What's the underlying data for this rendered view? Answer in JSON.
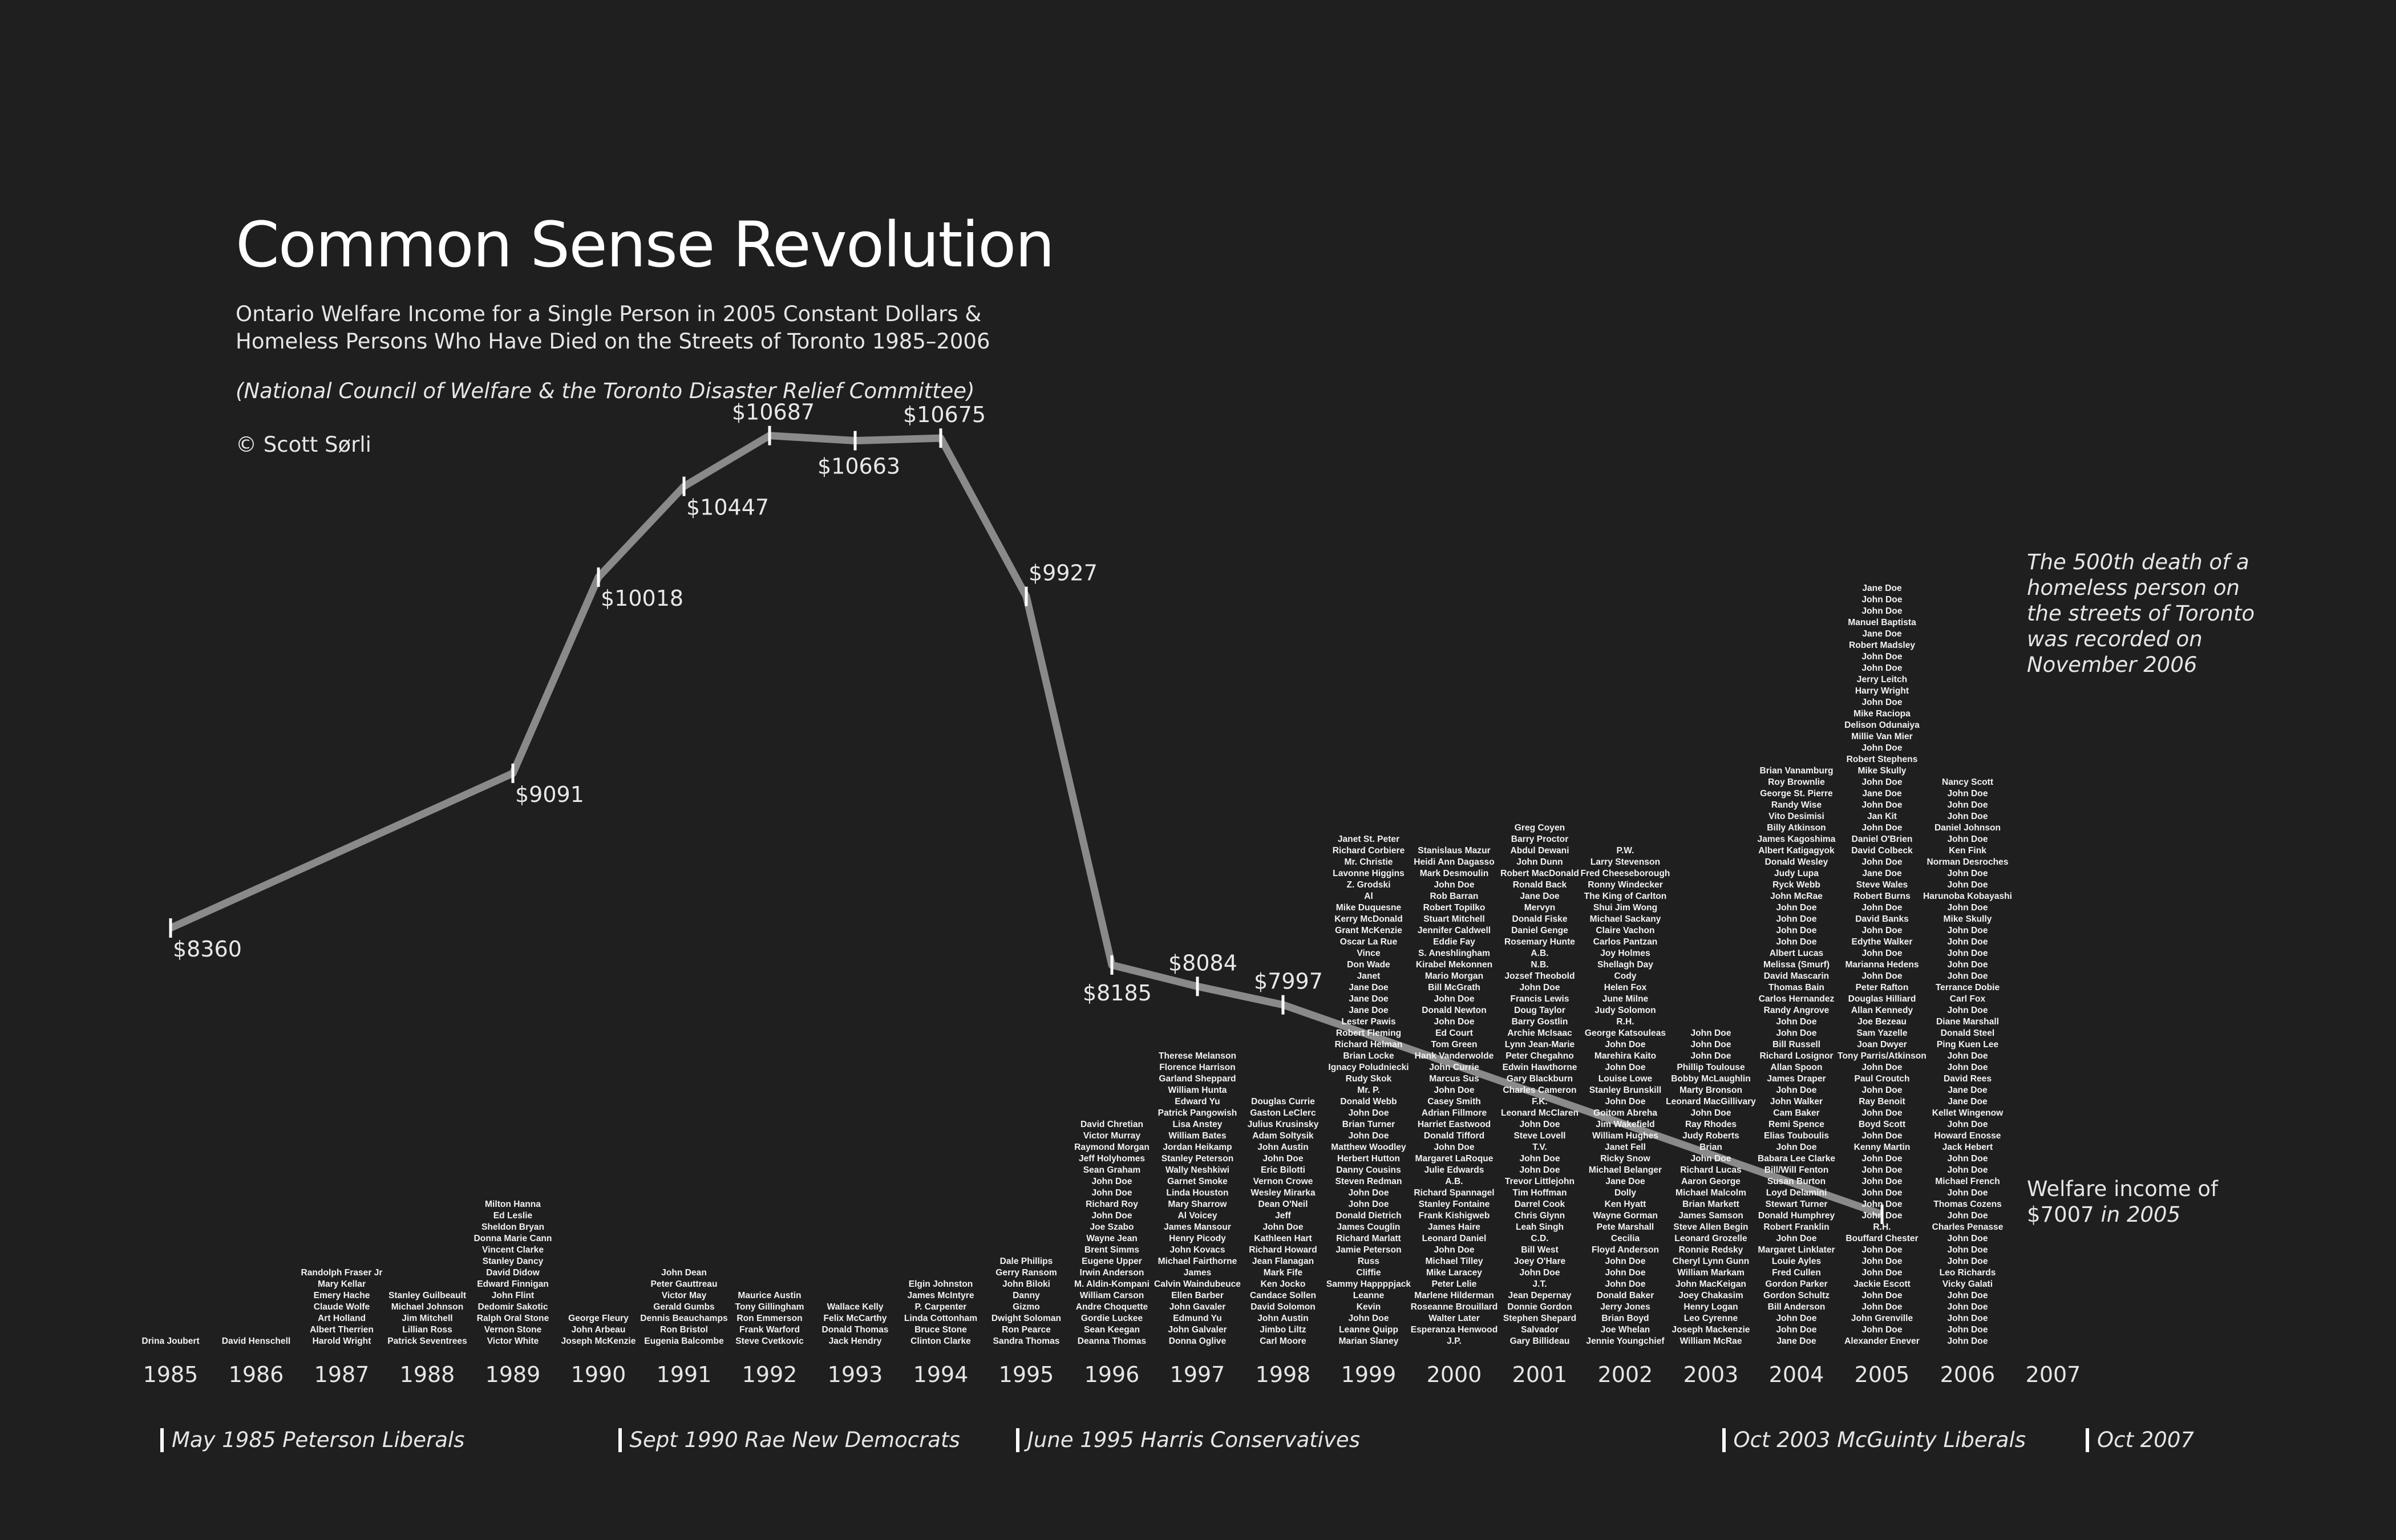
{
  "header": {
    "title": "Common Sense Revolution",
    "subtitle_line1": "Ontario Welfare Income for a Single Person in 2005 Constant Dollars &",
    "subtitle_line2": "Homeless Persons Who Have Died on the Streets of Toronto 1985–2006",
    "source": "(National Council of Welfare & the Toronto Disaster Relief Committee)",
    "copyright": "© Scott Sørli"
  },
  "annotations": {
    "death_500_line1": "The 500th death of a",
    "death_500_line2": "homeless person on",
    "death_500_line3": "the streets of Toronto",
    "death_500_line4": "was recorded on",
    "death_500_line5": "November 2006",
    "welfare_line1": "Welfare income of",
    "welfare_value": "$7007",
    "welfare_suffix": "in 2005"
  },
  "eras": [
    {
      "label": "May 1985 Peterson Liberals",
      "year": 1985
    },
    {
      "label": "Sept 1990 Rae New Democrats",
      "year": 1990.35
    },
    {
      "label": "June 1995 Harris Conservatives",
      "year": 1995
    },
    {
      "label": "Oct 2003 McGuinty Liberals",
      "year": 2003.25
    },
    {
      "label": "Oct 2007",
      "year": 2007.5
    }
  ],
  "colors": {
    "background": "#201f20",
    "line": "#8a8a8a",
    "text": "#e8e8e8",
    "tick": "#ffffff"
  },
  "chart_data": {
    "type": "line",
    "title": "Common Sense Revolution",
    "x": [
      1985,
      1986,
      1989,
      1990,
      1991,
      1992,
      1993,
      1994,
      1995,
      1996,
      1997,
      1998,
      2005
    ],
    "series": [
      {
        "values": [
          8360,
          null,
          9091,
          10018,
          10447,
          10687,
          10663,
          10675,
          9927,
          8185,
          8084,
          7997,
          7007
        ]
      }
    ],
    "labels": [
      "$8360",
      "",
      "$9091",
      "$10018",
      "$10447",
      "$10687",
      "$10663",
      "$10675",
      "$9927",
      "$8185",
      "$8084",
      "$7997",
      ""
    ],
    "x_ticks": [
      "1985",
      "1986",
      "1987",
      "1988",
      "1989",
      "1990",
      "1991",
      "1992",
      "1993",
      "1994",
      "1995",
      "1996",
      "1997",
      "1998",
      "1999",
      "2000",
      "2001",
      "2002",
      "2003",
      "2004",
      "2005",
      "2006",
      "2007"
    ],
    "grid": false,
    "deaths_by_year": [
      {
        "year": "1985",
        "names": [
          "Drina Joubert"
        ]
      },
      {
        "year": "1986",
        "names": [
          "David Henschell"
        ]
      },
      {
        "year": "1987",
        "names": [
          "Randolph Fraser Jr",
          "Mary Kellar",
          "Emery Hache",
          "Claude Wolfe",
          "Art Holland",
          "Albert Therrien",
          "Harold Wright"
        ]
      },
      {
        "year": "1988",
        "names": [
          "Stanley Guilbeault",
          "Michael Johnson",
          "Jim Mitchell",
          "Lillian Ross",
          "Patrick Seventrees"
        ]
      },
      {
        "year": "1989",
        "names": [
          "Milton Hanna",
          "Ed Leslie",
          "Sheldon Bryan",
          "Donna Marie Cann",
          "Vincent Clarke",
          "Stanley Dancy",
          "David Didow",
          "Edward Finnigan",
          "John Flint",
          "Dedomir Sakotic",
          "Ralph Oral Stone",
          "Vernon Stone",
          "Victor White"
        ]
      },
      {
        "year": "1990",
        "names": [
          "George Fleury",
          "John Arbeau",
          "Joseph McKenzie"
        ]
      },
      {
        "year": "1991",
        "names": [
          "John Dean",
          "Peter Gauttreau",
          "Victor May",
          "Gerald Gumbs",
          "Dennis Beauchamps",
          "Ron Bristol",
          "Eugenia Balcombe"
        ]
      },
      {
        "year": "1992",
        "names": [
          "Maurice Austin",
          "Tony Gillingham",
          "Ron Emmerson",
          "Frank Warford",
          "Steve Cvetkovic"
        ]
      },
      {
        "year": "1993",
        "names": [
          "Wallace Kelly",
          "Felix McCarthy",
          "Donald Thomas",
          "Jack Hendry"
        ]
      },
      {
        "year": "1994",
        "names": [
          "Elgin Johnston",
          "James McIntyre",
          "P. Carpenter",
          "Linda Cottonham",
          "Bruce Stone",
          "Clinton Clarke"
        ]
      },
      {
        "year": "1995",
        "names": [
          "Dale Phillips",
          "Gerry Ransom",
          "John Biloki",
          "Danny",
          "Gizmo",
          "Dwight Soloman",
          "Ron Pearce",
          "Sandra Thomas"
        ]
      },
      {
        "year": "1996",
        "names": [
          "David Chretian",
          "Victor Murray",
          "Raymond Morgan",
          "Jeff Holyhomes",
          "Sean Graham",
          "John Doe",
          "John Doe",
          "Richard Roy",
          "John Doe",
          "Joe Szabo",
          "Wayne Jean",
          "Brent Simms",
          "Eugene Upper",
          "Irwin Anderson",
          "M. Aldin-Kompani",
          "William Carson",
          "Andre Choquette",
          "Gordie Luckee",
          "Sean Keegan",
          "Deanna Thomas"
        ]
      },
      {
        "year": "1997",
        "names": [
          "Therese Melanson",
          "Florence Harrison",
          "Garland Sheppard",
          "William Hunta",
          "Edward Yu",
          "Patrick Pangowish",
          "Lisa Anstey",
          "William Bates",
          "Jordan Heikamp",
          "Stanley Peterson",
          "Wally Neshkiwi",
          "Garnet Smoke",
          "Linda Houston",
          "Mary Sharrow",
          "Al Voicey",
          "James Mansour",
          "Henry Picody",
          "John Kovacs",
          "Michael Fairthorne",
          "James",
          "Calvin Waindubeuce",
          "Ellen Barber",
          "John Gavaler",
          "Edmund Yu",
          "John Galvaler",
          "Donna Oglive"
        ]
      },
      {
        "year": "1998",
        "names": [
          "Douglas Currie",
          "Gaston LeClerc",
          "Julius Krusinsky",
          "Adam Soltysik",
          "John Austin",
          "John Doe",
          "Eric Bilotti",
          "Vernon Crowe",
          "Wesley Mirarka",
          "Dean O'Neil",
          "Jeff",
          "John Doe",
          "Kathleen Hart",
          "Richard Howard",
          "Jean Flanagan",
          "Mark Fife",
          "Ken Jocko",
          "Candace Sollen",
          "David Solomon",
          "John Austin",
          "Jimbo Liltz",
          "Carl Moore"
        ]
      },
      {
        "year": "1999",
        "names": [
          "Janet St. Peter",
          "Richard Corbiere",
          "Mr. Christie",
          "Lavonne Higgins",
          "Z. Grodski",
          "Al",
          "Mike Duquesne",
          "Kerry McDonald",
          "Grant McKenzie",
          "Oscar La Rue",
          "Vince",
          "Don Wade",
          "Janet",
          "Jane Doe",
          "Jane Doe",
          "Jane Doe",
          "Lester Pawis",
          "Robert Fleming",
          "Richard Helman",
          "Brian Locke",
          "Ignacy Poludniecki",
          "Rudy Skok",
          "Mr. P.",
          "Donald Webb",
          "John Doe",
          "Brian Turner",
          "John Doe",
          "Matthew Woodley",
          "Herbert Hutton",
          "Danny Cousins",
          "Steven Redman",
          "John Doe",
          "John Doe",
          "Donald Dietrich",
          "James Couglin",
          "Richard Marlatt",
          "Jamie Peterson",
          "Russ",
          "Cliffie",
          "Sammy Happppjack",
          "Leanne",
          "Kevin",
          "John Doe",
          "Leanne Quipp",
          "Marian Slaney"
        ]
      },
      {
        "year": "2000",
        "names": [
          "Stanislaus Mazur",
          "Heidi Ann Dagasso",
          "Mark Desmoulin",
          "John Doe",
          "Rob Barran",
          "Robert Topilko",
          "Stuart Mitchell",
          "Jennifer Caldwell",
          "Eddie Fay",
          "S. Aneshlingham",
          "Kirabel Mekonnen",
          "Mario Morgan",
          "Bill McGrath",
          "John Doe",
          "Donald Newton",
          "John Doe",
          "Ed Court",
          "Tom Green",
          "Hank Vanderwolde",
          "John Currie",
          "Marcus Sus",
          "John Doe",
          "Casey Smith",
          "Adrian Fillmore",
          "Harriet Eastwood",
          "Donald Tifford",
          "John Doe",
          "Margaret LaRoque",
          "Julie Edwards",
          "A.B.",
          "Richard Spannagel",
          "Stanley Fontaine",
          "Frank Kishigweb",
          "James Haire",
          "Leonard Daniel",
          "John Doe",
          "Michael Tilley",
          "Mike Laracey",
          "Peter Lelie",
          "Marlene Hilderman",
          "Roseanne Brouillard",
          "Walter Later",
          "Esperanza Henwood",
          "J.P."
        ]
      },
      {
        "year": "2001",
        "names": [
          "Greg Coyen",
          "Barry Proctor",
          "Abdul Dewani",
          "John Dunn",
          "Robert MacDonald",
          "Ronald Back",
          "Jane Doe",
          "Mervyn",
          "Donald Fiske",
          "Daniel Genge",
          "Rosemary Hunte",
          "A.B.",
          "N.B.",
          "Jozsef Theobold",
          "John Doe",
          "Francis Lewis",
          "Doug Taylor",
          "Barry Gostlin",
          "Archie McIsaac",
          "Lynn Jean-Marie",
          "Peter Chegahno",
          "Edwin Hawthorne",
          "Gary Blackburn",
          "Charles Cameron",
          "F.K.",
          "Leonard McClaren",
          "John Doe",
          "Steve Lovell",
          "T.V.",
          "John Doe",
          "John Doe",
          "Trevor Littlejohn",
          "Tim Hoffman",
          "Darrel Cook",
          "Chris Glynn",
          "Leah Singh",
          "C.D.",
          "Bill West",
          "Joey O'Hare",
          "John Doe",
          "J.T.",
          "Jean Depernay",
          "Donnie Gordon",
          "Stephen Shepard",
          "Salvador",
          "Gary Billideau"
        ]
      },
      {
        "year": "2002",
        "names": [
          "P.W.",
          "Larry Stevenson",
          "Fred Cheeseborough",
          "Ronny Windecker",
          "The King of Carlton",
          "Shui Jim Wong",
          "Michael Sackany",
          "Claire Vachon",
          "Carlos Pantzan",
          "Joy Holmes",
          "Shellagh Day",
          "Cody",
          "Helen Fox",
          "June Milne",
          "Judy Solomon",
          "R.H.",
          "George Katsouleas",
          "John Doe",
          "Marehira Kaito",
          "John Doe",
          "Louise Lowe",
          "Stanley Brunskill",
          "John Doe",
          "Goitom Abreha",
          "Jim Wakefield",
          "William Hughes",
          "Janet Fell",
          "Ricky Snow",
          "Michael Belanger",
          "Jane Doe",
          "Dolly",
          "Ken Hyatt",
          "Wayne Gorman",
          "Pete Marshall",
          "Cecilia",
          "Floyd Anderson",
          "John Doe",
          "John Doe",
          "John Doe",
          "Donald Baker",
          "Jerry Jones",
          "Brian Boyd",
          "Joe Whelan",
          "Jennie Youngchief"
        ]
      },
      {
        "year": "2003",
        "names": [
          "John Doe",
          "John Doe",
          "John Doe",
          "Phillip Toulouse",
          "Bobby McLaughlin",
          "Marty Bronson",
          "Leonard MacGillivary",
          "John Doe",
          "Ray Rhodes",
          "Judy Roberts",
          "Brian",
          "John Doe",
          "Richard Lucas",
          "Aaron George",
          "Michael Malcolm",
          "Brian Markett",
          "James Samson",
          "Steve Allen Begin",
          "Leonard Grozelle",
          "Ronnie Redsky",
          "Cheryl Lynn Gunn",
          "William Markam",
          "John MacKeigan",
          "Joey Chakasim",
          "Henry Logan",
          "Leo Cyrenne",
          "Joseph Mackenzie",
          "William McRae"
        ]
      },
      {
        "year": "2004",
        "names": [
          "Brian Vanamburg",
          "Roy Brownlie",
          "George St. Pierre",
          "Randy Wise",
          "Vito Desimisi",
          "Billy Atkinson",
          "James Kagoshima",
          "Albert Katigagyok",
          "Donald Wesley",
          "Judy Lupa",
          "Ryck Webb",
          "John McRae",
          "John Doe",
          "John Doe",
          "John Doe",
          "John Doe",
          "Albert Lucas",
          "Melissa (Smurf)",
          "David Mascarin",
          "Thomas Bain",
          "Carlos Hernandez",
          "Randy Angrove",
          "John Doe",
          "John Doe",
          "Bill Russell",
          "Richard Losignor",
          "Allan Spoon",
          "James Draper",
          "John Doe",
          "John Walker",
          "Cam Baker",
          "Remi Spence",
          "Elias Touboulis",
          "John Doe",
          "Babara Lee Clarke",
          "Bill/Will Fenton",
          "Susan Burton",
          "Loyd Delamini",
          "Stewart Turner",
          "Donald Humphrey",
          "Robert Franklin",
          "John Doe",
          "Margaret Linklater",
          "Louie Ayles",
          "Fred Cullen",
          "Gordon Parker",
          "Gordon Schultz",
          "Bill Anderson",
          "John Doe",
          "John Doe",
          "Jane Doe"
        ]
      },
      {
        "year": "2005",
        "names": [
          "Jane Doe",
          "John Doe",
          "John Doe",
          "Manuel Baptista",
          "Jane Doe",
          "Robert Madsley",
          "John Doe",
          "John Doe",
          "Jerry Leitch",
          "Harry Wright",
          "John Doe",
          "Mike Raciopa",
          "Delison Odunaiya",
          "Millie Van Mier",
          "John Doe",
          "Robert Stephens",
          "Mike Skully",
          "John Doe",
          "Jane Doe",
          "John Doe",
          "Jan Kit",
          "John Doe",
          "Daniel O'Brien",
          "David Colbeck",
          "John Doe",
          "Jane Doe",
          "Steve Wales",
          "Robert Burns",
          "John Doe",
          "David Banks",
          "John Doe",
          "Edythe Walker",
          "John Doe",
          "Marianna Hedens",
          "John Doe",
          "Peter Rafton",
          "Douglas Hilliard",
          "Allan Kennedy",
          "Joe Bezeau",
          "Sam Yazelle",
          "Joan Dwyer",
          "Tony Parris/Atkinson",
          "John Doe",
          "Paul Croutch",
          "John Doe",
          "Ray Benoit",
          "John Doe",
          "Boyd Scott",
          "John Doe",
          "Kenny Martin",
          "John Doe",
          "John Doe",
          "John Doe",
          "John Doe",
          "John Doe",
          "John Doe",
          "R.H.",
          "Bouffard Chester",
          "John Doe",
          "John Doe",
          "John Doe",
          "Jackie Escott",
          "John Doe",
          "John Doe",
          "John Grenville",
          "John Doe",
          "Alexander Enever"
        ]
      },
      {
        "year": "2006",
        "names": [
          "Nancy Scott",
          "John Doe",
          "John Doe",
          "John Doe",
          "Daniel Johnson",
          "John Doe",
          "Ken Fink",
          "Norman Desroches",
          "John Doe",
          "John Doe",
          "Harunoba Kobayashi",
          "John Doe",
          "Mike Skully",
          "John Doe",
          "John Doe",
          "John Doe",
          "John Doe",
          "John Doe",
          "Terrance Dobie",
          "Carl Fox",
          "John Doe",
          "Diane Marshall",
          "Donald Steel",
          "Ping Kuen Lee",
          "John Doe",
          "John Doe",
          "David Rees",
          "Jane Doe",
          "Jane Doe",
          "Kellet Wingenow",
          "John Doe",
          "Howard Enosse",
          "Jack Hebert",
          "John Doe",
          "John Doe",
          "Michael French",
          "John Doe",
          "Thomas Cozens",
          "John Doe",
          "Charles Penasse",
          "John Doe",
          "John Doe",
          "John Doe",
          "Leo Richards",
          "Vicky Galati",
          "John Doe",
          "John Doe",
          "John Doe",
          "John Doe",
          "John Doe"
        ]
      }
    ]
  }
}
